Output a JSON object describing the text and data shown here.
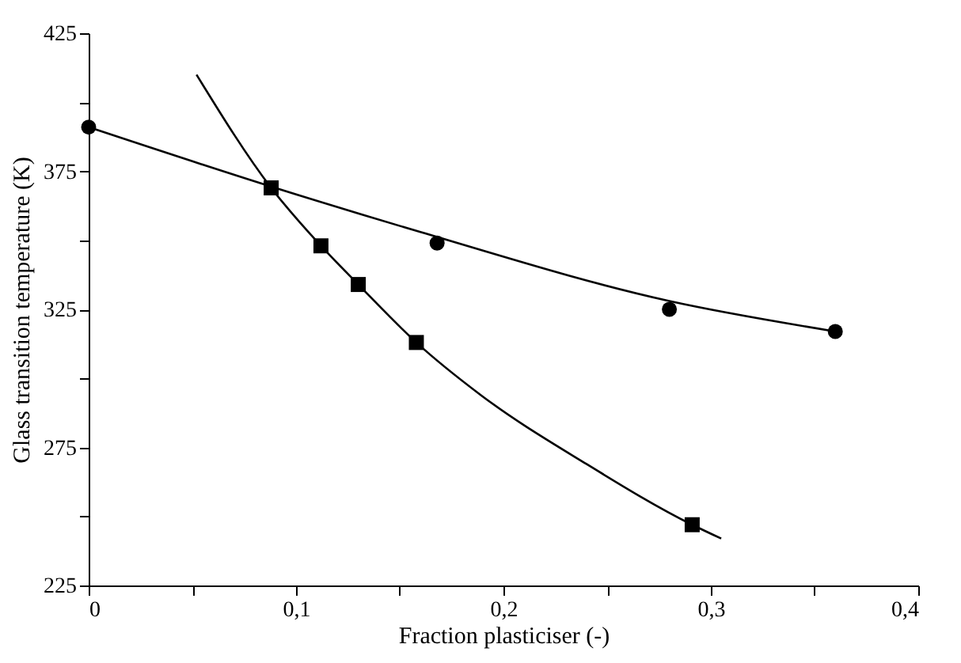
{
  "chart_data": {
    "type": "scatter",
    "xlabel": "Fraction plasticiser (-)",
    "ylabel": "Glass transition temperature (K)",
    "xlim": [
      0,
      0.4
    ],
    "ylim": [
      225,
      425
    ],
    "xticks": [
      {
        "value": 0,
        "label": "0"
      },
      {
        "value": 0.05,
        "label": null
      },
      {
        "value": 0.1,
        "label": "0,1"
      },
      {
        "value": 0.15,
        "label": null
      },
      {
        "value": 0.2,
        "label": "0,2"
      },
      {
        "value": 0.25,
        "label": null
      },
      {
        "value": 0.3,
        "label": "0,3"
      },
      {
        "value": 0.35,
        "label": null
      },
      {
        "value": 0.4,
        "label": "0,4"
      }
    ],
    "yticks": [
      225,
      {
        "value": 250,
        "label": null
      },
      275,
      {
        "value": 300,
        "label": null
      },
      325,
      {
        "value": 350,
        "label": null
      },
      375,
      {
        "value": 400,
        "label": null
      },
      425
    ],
    "grid": false,
    "series": [
      {
        "marker": "circle",
        "color": "#000000",
        "x": [
          0,
          0.168,
          0.28,
          0.36
        ],
        "values": [
          391,
          349,
          325,
          317
        ]
      },
      {
        "marker": "square",
        "color": "#000000",
        "x": [
          0.088,
          0.112,
          0.13,
          0.158,
          0.291
        ],
        "values": [
          369,
          348,
          334,
          313,
          247
        ]
      },
      {
        "type": "line",
        "marker": "none",
        "color": "#000000",
        "x": [
          0,
          0.09,
          0.16,
          0.28,
          0.36
        ],
        "values": [
          391,
          369,
          353,
          328,
          317
        ]
      },
      {
        "type": "line",
        "marker": "none",
        "color": "#000000",
        "x": [
          0.052,
          0.088,
          0.112,
          0.13,
          0.158,
          0.189,
          0.24,
          0.291,
          0.305
        ],
        "values": [
          410,
          369,
          348,
          334,
          313,
          294,
          269,
          247,
          242
        ]
      }
    ]
  }
}
